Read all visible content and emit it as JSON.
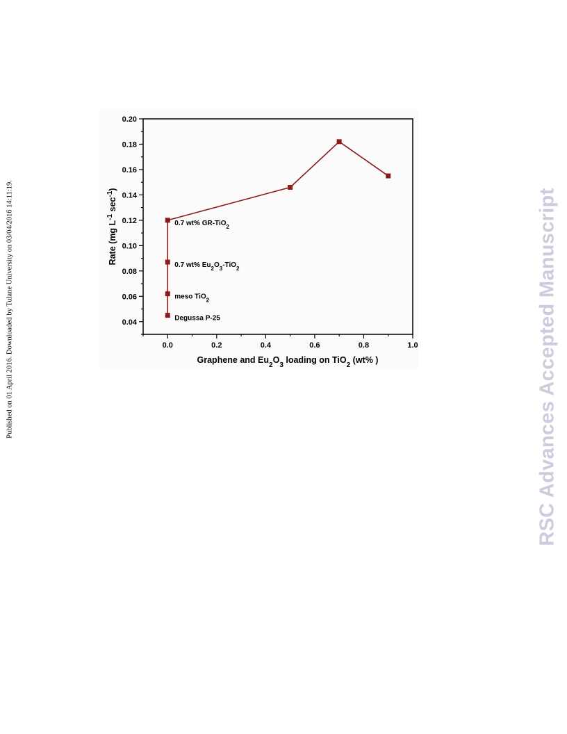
{
  "side_note": "Published on 01 April 2016. Downloaded by Tulane University on 03/04/2016 14:11:19.",
  "watermark": "RSC Advances Accepted Manuscript",
  "chart_data": {
    "type": "line",
    "title": "",
    "xlabel": {
      "parts": [
        {
          "text": "Graphene and Eu",
          "style": "normal"
        },
        {
          "text": "2",
          "style": "sub"
        },
        {
          "text": "O",
          "style": "normal"
        },
        {
          "text": "3",
          "style": "sub"
        },
        {
          "text": " loading on TiO",
          "style": "normal"
        },
        {
          "text": "2",
          "style": "sub"
        },
        {
          "text": " (wt% )",
          "style": "normal"
        }
      ]
    },
    "ylabel": {
      "parts": [
        {
          "text": "Rate (mg L",
          "style": "normal"
        },
        {
          "text": "-1",
          "style": "sup"
        },
        {
          "text": " sec",
          "style": "normal"
        },
        {
          "text": "-1",
          "style": "sup"
        },
        {
          "text": ")",
          "style": "normal"
        }
      ]
    },
    "xlim": [
      -0.1,
      1.0
    ],
    "ylim": [
      0.03,
      0.2
    ],
    "xticks": [
      "0.0",
      "0.2",
      "0.4",
      "0.6",
      "0.8",
      "1.0"
    ],
    "yticks": [
      "0.04",
      "0.06",
      "0.08",
      "0.10",
      "0.12",
      "0.14",
      "0.16",
      "0.18",
      "0.20"
    ],
    "grid": false,
    "series": [
      {
        "color": "#8b1a1a",
        "marker": "square",
        "points": [
          {
            "x": 0.0,
            "y": 0.045
          },
          {
            "x": 0.0,
            "y": 0.062
          },
          {
            "x": 0.0,
            "y": 0.087
          },
          {
            "x": 0.0,
            "y": 0.12
          },
          {
            "x": 0.5,
            "y": 0.146
          },
          {
            "x": 0.7,
            "y": 0.182
          },
          {
            "x": 0.9,
            "y": 0.155
          }
        ]
      }
    ],
    "annotations": [
      {
        "x": 0.0,
        "y": 0.045,
        "parts": [
          {
            "text": "Degussa P-25",
            "style": "normal"
          }
        ]
      },
      {
        "x": 0.0,
        "y": 0.062,
        "parts": [
          {
            "text": "meso TiO",
            "style": "normal"
          },
          {
            "text": "2",
            "style": "sub"
          }
        ]
      },
      {
        "x": 0.0,
        "y": 0.087,
        "parts": [
          {
            "text": "0.7 wt% Eu",
            "style": "normal"
          },
          {
            "text": "2",
            "style": "sub"
          },
          {
            "text": "O",
            "style": "normal"
          },
          {
            "text": "3",
            "style": "sub"
          },
          {
            "text": "-TiO",
            "style": "normal"
          },
          {
            "text": "2",
            "style": "sub"
          }
        ]
      },
      {
        "x": 0.0,
        "y": 0.12,
        "parts": [
          {
            "text": "0.7 wt% GR-TiO",
            "style": "normal"
          },
          {
            "text": "2",
            "style": "sub"
          }
        ]
      }
    ]
  }
}
